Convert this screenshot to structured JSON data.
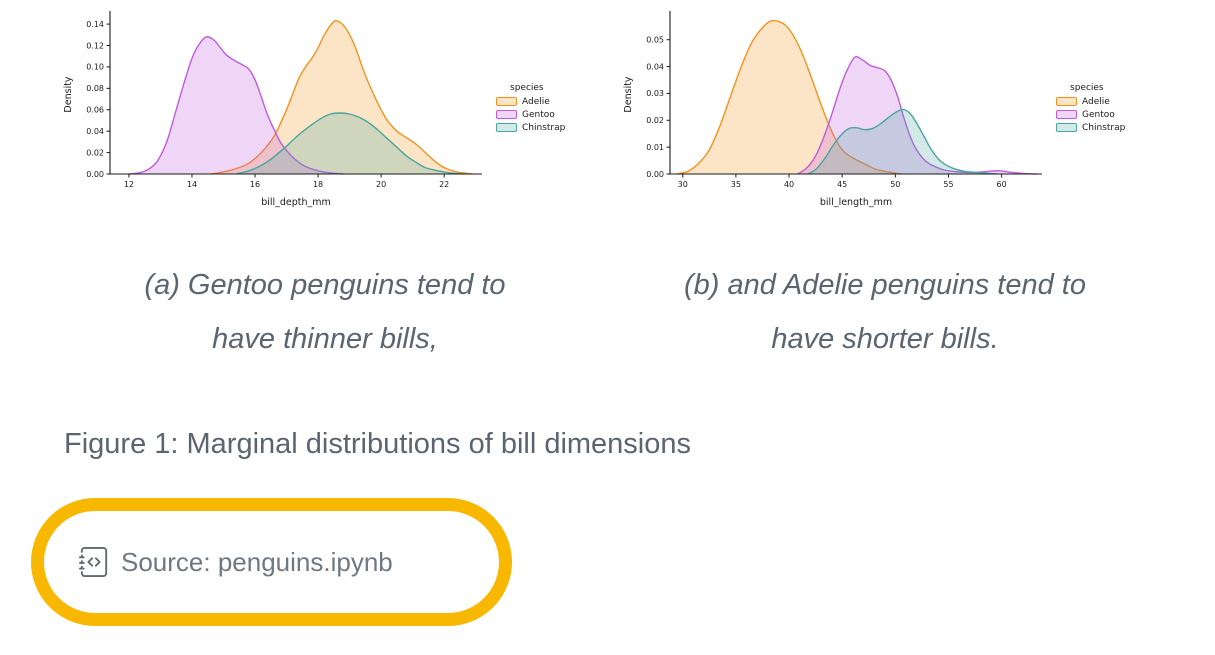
{
  "theme": {
    "background": "#ffffff",
    "caption_color": "#5a6570",
    "source_text_color": "#6e7882",
    "highlight_color": "#f8b700",
    "chart_text_color": "#1a1a1a"
  },
  "figure": {
    "title": "Figure 1: Marginal distributions of bill dimensions",
    "captions": [
      {
        "line1": "(a) Gentoo penguins tend to",
        "line2": "have thinner bills,"
      },
      {
        "line1": "(b) and Adelie penguins tend to",
        "line2": "have shorter bills."
      }
    ]
  },
  "source": {
    "icon": "journal-code-icon",
    "label": "Source: penguins.ipynb"
  },
  "chart_data": [
    {
      "type": "area",
      "title": "",
      "xlabel": "bill_depth_mm",
      "ylabel": "Density",
      "xlim": [
        11.4,
        23.2
      ],
      "ylim": [
        0,
        0.1485
      ],
      "xticks": [
        12,
        14,
        16,
        18,
        20,
        22
      ],
      "xtick_labels": [
        "12",
        "14",
        "16",
        "18",
        "20",
        "22"
      ],
      "yticks": [
        0,
        0.02,
        0.04,
        0.06,
        0.08,
        0.1,
        0.12,
        0.14
      ],
      "ytick_labels": [
        "0.00",
        "0.02",
        "0.04",
        "0.06",
        "0.08",
        "0.10",
        "0.12",
        "0.14"
      ],
      "grid": false,
      "legend_title": "species",
      "legend_position": "right",
      "series": [
        {
          "name": "Adelie",
          "color": "#f5921e",
          "fill_opacity": 0.25,
          "points": [
            [
              14.6,
              0.0
            ],
            [
              15.0,
              0.002
            ],
            [
              15.4,
              0.005
            ],
            [
              15.8,
              0.01
            ],
            [
              16.2,
              0.02
            ],
            [
              16.6,
              0.035
            ],
            [
              17.0,
              0.06
            ],
            [
              17.2,
              0.075
            ],
            [
              17.4,
              0.09
            ],
            [
              17.6,
              0.1
            ],
            [
              17.8,
              0.108
            ],
            [
              18.0,
              0.118
            ],
            [
              18.2,
              0.13
            ],
            [
              18.45,
              0.141
            ],
            [
              18.6,
              0.143
            ],
            [
              18.8,
              0.139
            ],
            [
              19.0,
              0.13
            ],
            [
              19.2,
              0.117
            ],
            [
              19.4,
              0.1
            ],
            [
              19.6,
              0.085
            ],
            [
              19.8,
              0.072
            ],
            [
              20.0,
              0.06
            ],
            [
              20.2,
              0.05
            ],
            [
              20.5,
              0.04
            ],
            [
              20.8,
              0.034
            ],
            [
              21.1,
              0.028
            ],
            [
              21.4,
              0.02
            ],
            [
              21.7,
              0.012
            ],
            [
              22.0,
              0.006
            ],
            [
              22.4,
              0.002
            ],
            [
              22.9,
              0.0
            ]
          ]
        },
        {
          "name": "Gentoo",
          "color": "#be5ce0",
          "fill_opacity": 0.25,
          "points": [
            [
              12.0,
              0.0
            ],
            [
              12.3,
              0.001
            ],
            [
              12.6,
              0.004
            ],
            [
              12.9,
              0.012
            ],
            [
              13.2,
              0.03
            ],
            [
              13.5,
              0.06
            ],
            [
              13.8,
              0.09
            ],
            [
              14.0,
              0.108
            ],
            [
              14.2,
              0.12
            ],
            [
              14.45,
              0.128
            ],
            [
              14.7,
              0.125
            ],
            [
              14.9,
              0.118
            ],
            [
              15.1,
              0.111
            ],
            [
              15.35,
              0.106
            ],
            [
              15.6,
              0.102
            ],
            [
              15.8,
              0.098
            ],
            [
              16.0,
              0.088
            ],
            [
              16.2,
              0.072
            ],
            [
              16.4,
              0.055
            ],
            [
              16.6,
              0.042
            ],
            [
              16.8,
              0.03
            ],
            [
              17.0,
              0.022
            ],
            [
              17.3,
              0.013
            ],
            [
              17.6,
              0.007
            ],
            [
              18.0,
              0.003
            ],
            [
              18.4,
              0.001
            ],
            [
              18.8,
              0.0
            ]
          ]
        },
        {
          "name": "Chinstrap",
          "color": "#4aa69e",
          "fill_opacity": 0.25,
          "points": [
            [
              15.4,
              0.0
            ],
            [
              15.8,
              0.003
            ],
            [
              16.2,
              0.008
            ],
            [
              16.6,
              0.016
            ],
            [
              17.0,
              0.026
            ],
            [
              17.4,
              0.037
            ],
            [
              17.8,
              0.046
            ],
            [
              18.1,
              0.052
            ],
            [
              18.4,
              0.056
            ],
            [
              18.7,
              0.057
            ],
            [
              19.0,
              0.056
            ],
            [
              19.3,
              0.053
            ],
            [
              19.6,
              0.048
            ],
            [
              19.9,
              0.041
            ],
            [
              20.2,
              0.033
            ],
            [
              20.5,
              0.025
            ],
            [
              20.8,
              0.017
            ],
            [
              21.1,
              0.011
            ],
            [
              21.4,
              0.006
            ],
            [
              21.8,
              0.003
            ],
            [
              22.2,
              0.001
            ],
            [
              22.6,
              0.0
            ]
          ]
        }
      ]
    },
    {
      "type": "area",
      "title": "",
      "xlabel": "bill_length_mm",
      "ylabel": "Density",
      "xlim": [
        28.8,
        63.8
      ],
      "ylim": [
        0,
        0.0592
      ],
      "xticks": [
        30,
        35,
        40,
        45,
        50,
        55,
        60
      ],
      "xtick_labels": [
        "30",
        "35",
        "40",
        "45",
        "50",
        "55",
        "60"
      ],
      "yticks": [
        0,
        0.01,
        0.02,
        0.03,
        0.04,
        0.05
      ],
      "ytick_labels": [
        "0.00",
        "0.01",
        "0.02",
        "0.03",
        "0.04",
        "0.05"
      ],
      "grid": false,
      "legend_title": "species",
      "legend_position": "right",
      "series": [
        {
          "name": "Adelie",
          "color": "#f5921e",
          "fill_opacity": 0.25,
          "points": [
            [
              29.4,
              0.0
            ],
            [
              30.5,
              0.001
            ],
            [
              31.5,
              0.004
            ],
            [
              32.5,
              0.009
            ],
            [
              33.5,
              0.018
            ],
            [
              34.5,
              0.029
            ],
            [
              35.5,
              0.04
            ],
            [
              36.5,
              0.049
            ],
            [
              37.5,
              0.0545
            ],
            [
              38.3,
              0.057
            ],
            [
              39.2,
              0.0565
            ],
            [
              40.0,
              0.054
            ],
            [
              41.0,
              0.047
            ],
            [
              42.0,
              0.037
            ],
            [
              43.0,
              0.026
            ],
            [
              44.0,
              0.016
            ],
            [
              45.0,
              0.009
            ],
            [
              46.0,
              0.006
            ],
            [
              47.0,
              0.004
            ],
            [
              48.0,
              0.002
            ],
            [
              49.0,
              0.001
            ],
            [
              50.5,
              0.0
            ]
          ]
        },
        {
          "name": "Gentoo",
          "color": "#be5ce0",
          "fill_opacity": 0.25,
          "points": [
            [
              40.8,
              0.0
            ],
            [
              41.6,
              0.002
            ],
            [
              42.4,
              0.006
            ],
            [
              43.2,
              0.013
            ],
            [
              44.0,
              0.022
            ],
            [
              44.8,
              0.032
            ],
            [
              45.5,
              0.039
            ],
            [
              46.2,
              0.0435
            ],
            [
              46.9,
              0.0425
            ],
            [
              47.6,
              0.0405
            ],
            [
              48.4,
              0.0395
            ],
            [
              49.0,
              0.0385
            ],
            [
              49.6,
              0.035
            ],
            [
              50.2,
              0.029
            ],
            [
              50.8,
              0.021
            ],
            [
              51.4,
              0.014
            ],
            [
              52.0,
              0.009
            ],
            [
              52.8,
              0.005
            ],
            [
              53.6,
              0.003
            ],
            [
              54.6,
              0.0015
            ],
            [
              56.0,
              0.0008
            ],
            [
              57.5,
              0.0006
            ],
            [
              58.8,
              0.001
            ],
            [
              59.8,
              0.0012
            ],
            [
              61.0,
              0.0006
            ],
            [
              62.5,
              0.0001
            ],
            [
              63.3,
              0.0
            ]
          ]
        },
        {
          "name": "Chinstrap",
          "color": "#4aa69e",
          "fill_opacity": 0.25,
          "points": [
            [
              41.8,
              0.0
            ],
            [
              42.6,
              0.002
            ],
            [
              43.4,
              0.006
            ],
            [
              44.2,
              0.011
            ],
            [
              45.0,
              0.015
            ],
            [
              45.7,
              0.017
            ],
            [
              46.4,
              0.0172
            ],
            [
              47.1,
              0.0165
            ],
            [
              47.9,
              0.017
            ],
            [
              48.7,
              0.019
            ],
            [
              49.5,
              0.0215
            ],
            [
              50.3,
              0.0235
            ],
            [
              50.8,
              0.024
            ],
            [
              51.4,
              0.0225
            ],
            [
              52.0,
              0.019
            ],
            [
              52.7,
              0.014
            ],
            [
              53.4,
              0.009
            ],
            [
              54.2,
              0.005
            ],
            [
              55.2,
              0.0025
            ],
            [
              56.5,
              0.001
            ],
            [
              58.0,
              0.0005
            ],
            [
              59.5,
              0.0
            ]
          ]
        }
      ]
    }
  ]
}
